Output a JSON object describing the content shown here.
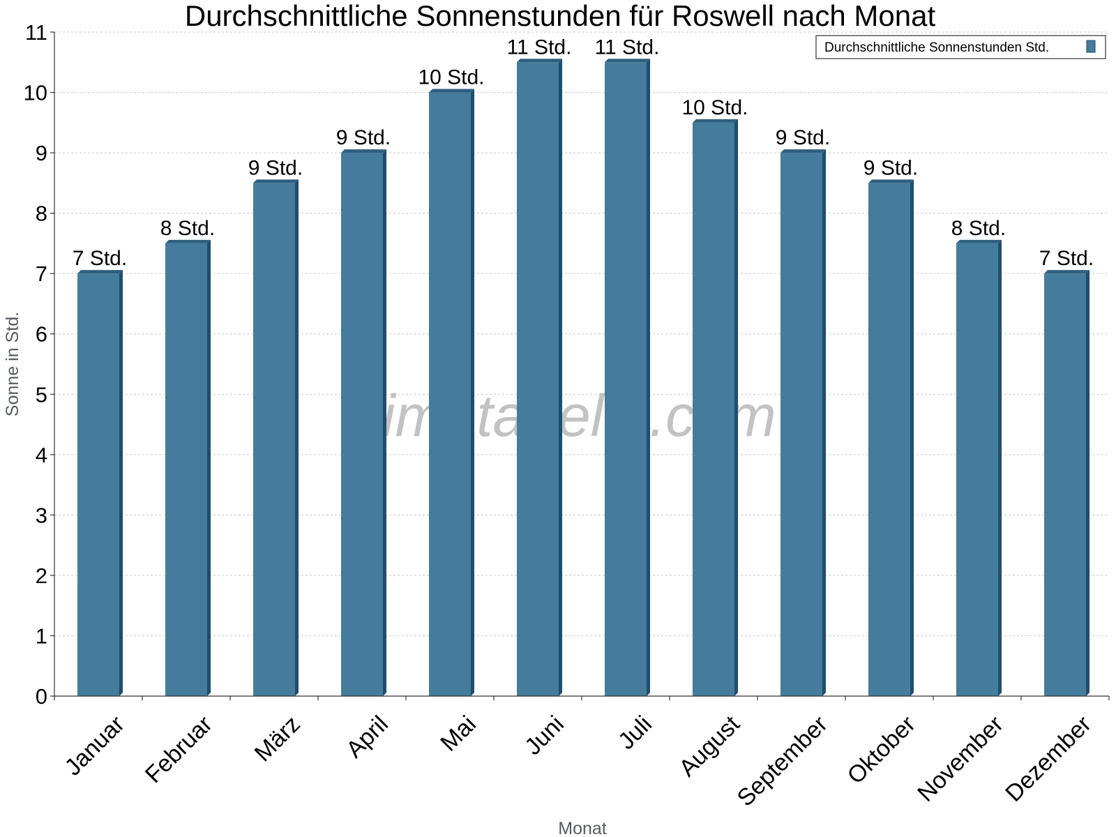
{
  "chart_data": {
    "type": "bar",
    "title": "Durchschnittliche Sonnenstunden für Roswell nach Monat",
    "xlabel": "Monat",
    "ylabel": "Sonne in Std.",
    "ylim": [
      0,
      11
    ],
    "yticks": [
      "0",
      "1",
      "2",
      "3",
      "4",
      "5",
      "6",
      "7",
      "8",
      "9",
      "10",
      "11"
    ],
    "grid": true,
    "legend_position": "top-right",
    "categories": [
      "Januar",
      "Februar",
      "März",
      "April",
      "Mai",
      "Juni",
      "Juli",
      "August",
      "September",
      "Oktober",
      "November",
      "Dezember"
    ],
    "series": [
      {
        "name": "Durchschnittliche Sonnenstunden Std.",
        "values": [
          7,
          7.5,
          8.5,
          9,
          10,
          10.5,
          10.5,
          9.5,
          9,
          8.5,
          7.5,
          7
        ],
        "labels": [
          "7 Std.",
          "8 Std.",
          "9 Std.",
          "9 Std.",
          "10 Std.",
          "11 Std.",
          "11 Std.",
          "10 Std.",
          "9 Std.",
          "9 Std.",
          "8 Std.",
          "7 Std."
        ]
      }
    ],
    "colors": {
      "bar": "#457b9d",
      "bar_side": "#1d4e6e",
      "bar_top": "#2f5f80"
    }
  },
  "watermark": "klimatabelle.com"
}
